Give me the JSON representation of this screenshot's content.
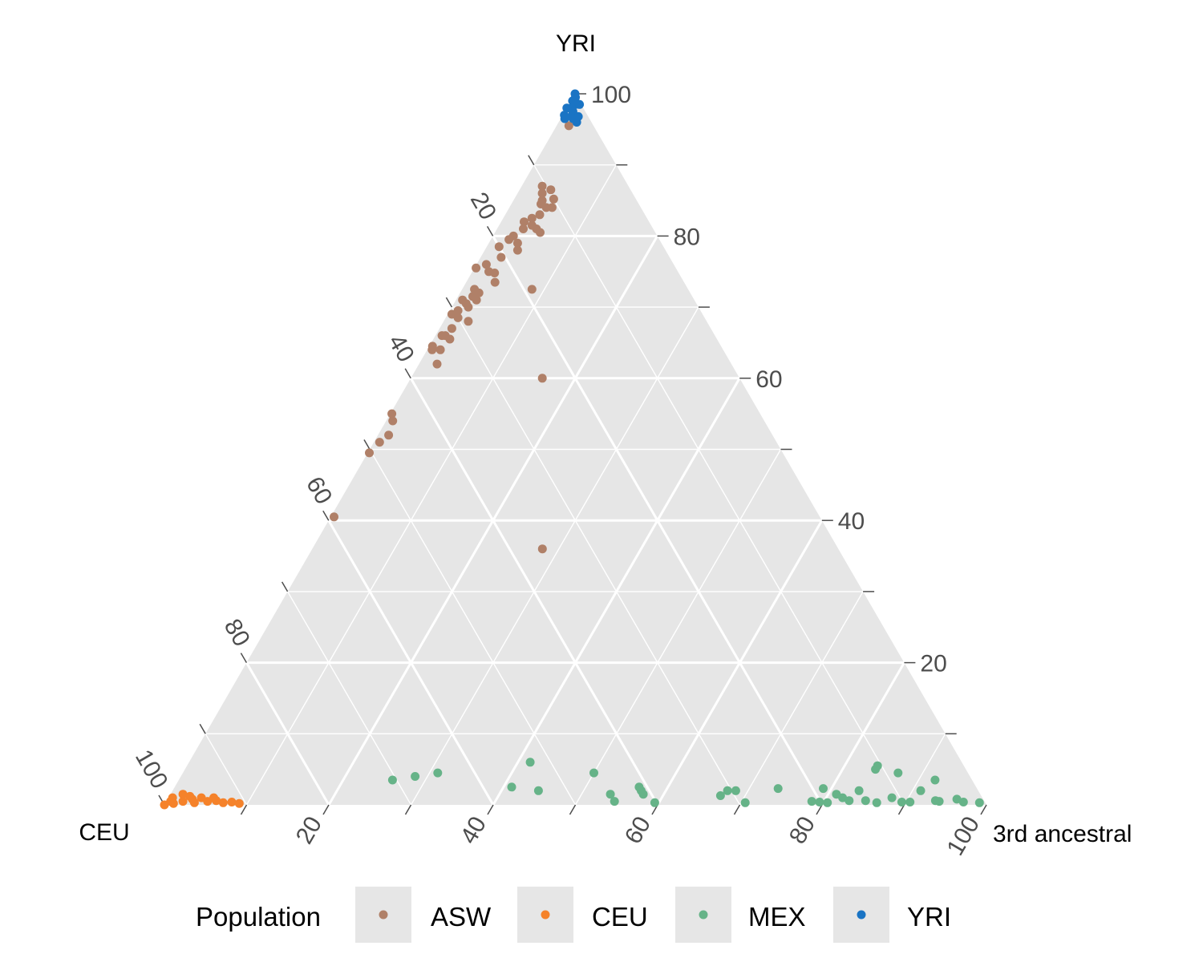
{
  "chart_data": {
    "type": "scatter",
    "subtype": "ternary",
    "title": "",
    "axes": {
      "top": "YRI",
      "left": "CEU",
      "right": "3rd ancestral"
    },
    "ticks": [
      "20",
      "40",
      "60",
      "80",
      "100"
    ],
    "right_edge_ticks": [
      "20",
      "40",
      "60",
      "80",
      "100"
    ],
    "range": [
      0,
      100
    ],
    "grid": true,
    "legend": {
      "title": "Population",
      "position": "bottom",
      "entries": [
        {
          "name": "ASW",
          "color": "#B08068"
        },
        {
          "name": "CEU",
          "color": "#F5822A"
        },
        {
          "name": "MEX",
          "color": "#66B388"
        },
        {
          "name": "YRI",
          "color": "#1A74C4"
        }
      ]
    },
    "point_fields": [
      "YRI",
      "3rd ancestral"
    ],
    "series": [
      {
        "name": "ASW",
        "color": "#B08068",
        "points": [
          [
            95.5,
            1.5
          ],
          [
            87.0,
            2.5
          ],
          [
            86.0,
            3.0
          ],
          [
            86.5,
            3.8
          ],
          [
            85.0,
            3.5
          ],
          [
            84.5,
            3.6
          ],
          [
            84.0,
            4.5
          ],
          [
            85.2,
            4.8
          ],
          [
            84.0,
            5.2
          ],
          [
            83.0,
            4.2
          ],
          [
            82.5,
            3.5
          ],
          [
            82.0,
            2.8
          ],
          [
            81.5,
            4.0
          ],
          [
            81.0,
            3.2
          ],
          [
            81.0,
            4.8
          ],
          [
            80.5,
            5.5
          ],
          [
            80.0,
            2.5
          ],
          [
            79.5,
            2.2
          ],
          [
            79.0,
            3.5
          ],
          [
            78.5,
            1.5
          ],
          [
            78.0,
            4.0
          ],
          [
            77.0,
            2.5
          ],
          [
            75.5,
            0.2
          ],
          [
            76.0,
            1.2
          ],
          [
            75.0,
            2.0
          ],
          [
            74.8,
            2.8
          ],
          [
            73.5,
            3.5
          ],
          [
            72.5,
            1.5
          ],
          [
            72.0,
            2.3
          ],
          [
            71.5,
            1.8
          ],
          [
            71.0,
            0.8
          ],
          [
            71.0,
            2.5
          ],
          [
            70.5,
            1.5
          ],
          [
            70.0,
            2.0
          ],
          [
            69.5,
            1.0
          ],
          [
            69.0,
            0.5
          ],
          [
            68.5,
            1.5
          ],
          [
            68.0,
            3.0
          ],
          [
            67.0,
            1.5
          ],
          [
            66.0,
            0.8
          ],
          [
            66.0,
            1.2
          ],
          [
            65.5,
            2.0
          ],
          [
            72.5,
            8.5
          ],
          [
            64.5,
            0.4
          ],
          [
            64.0,
            0.6
          ],
          [
            64.0,
            1.6
          ],
          [
            62.0,
            2.2
          ],
          [
            55.0,
            0.2
          ],
          [
            54.0,
            0.8
          ],
          [
            52.0,
            1.3
          ],
          [
            51.0,
            0.7
          ],
          [
            49.5,
            0.2
          ],
          [
            40.5,
            0.4
          ],
          [
            60.0,
            16.0
          ],
          [
            36.0,
            28.0
          ]
        ]
      },
      {
        "name": "CEU",
        "color": "#F5822A",
        "points": [
          [
            0,
            0
          ],
          [
            0.5,
            0.5
          ],
          [
            1.0,
            0.5
          ],
          [
            1.5,
            1.5
          ],
          [
            0.5,
            2.0
          ],
          [
            0.8,
            3.0
          ],
          [
            1.0,
            4.0
          ],
          [
            0.5,
            5.0
          ],
          [
            0.6,
            6.0
          ],
          [
            0.3,
            7.0
          ],
          [
            1.2,
            2.5
          ],
          [
            1.0,
            5.5
          ],
          [
            0.4,
            8.0
          ],
          [
            0.2,
            9.0
          ],
          [
            0.3,
            3.5
          ],
          [
            0.2,
            1.0
          ]
        ]
      },
      {
        "name": "MEX",
        "color": "#66B388",
        "points": [
          [
            3.5,
            26.0
          ],
          [
            4.0,
            28.5
          ],
          [
            4.5,
            31.0
          ],
          [
            6.0,
            41.5
          ],
          [
            2.5,
            41.0
          ],
          [
            2.0,
            44.5
          ],
          [
            4.5,
            50.0
          ],
          [
            1.5,
            53.5
          ],
          [
            0.5,
            54.5
          ],
          [
            2.5,
            56.5
          ],
          [
            2.0,
            57.0
          ],
          [
            1.5,
            57.5
          ],
          [
            0.3,
            59.5
          ],
          [
            2.0,
            67.5
          ],
          [
            1.3,
            67.0
          ],
          [
            2.0,
            68.5
          ],
          [
            0.3,
            70.5
          ],
          [
            2.3,
            73.5
          ],
          [
            2.3,
            79.0
          ],
          [
            0.5,
            78.5
          ],
          [
            0.4,
            79.5
          ],
          [
            0.3,
            80.5
          ],
          [
            1.5,
            81.0
          ],
          [
            1.0,
            82.0
          ],
          [
            0.6,
            83.0
          ],
          [
            2.0,
            83.5
          ],
          [
            5.5,
            84.0
          ],
          [
            5.0,
            84.0
          ],
          [
            0.6,
            85.0
          ],
          [
            0.3,
            86.5
          ],
          [
            1.0,
            88.0
          ],
          [
            4.5,
            87.0
          ],
          [
            0.4,
            89.5
          ],
          [
            0.4,
            90.5
          ],
          [
            2.0,
            91.0
          ],
          [
            3.5,
            92.0
          ],
          [
            0.6,
            93.5
          ],
          [
            0.5,
            94.0
          ],
          [
            0.8,
            96.0
          ],
          [
            0.4,
            97.0
          ],
          [
            0.3,
            99.0
          ]
        ]
      },
      {
        "name": "YRI",
        "color": "#1A74C4",
        "points": [
          [
            100,
            0
          ],
          [
            99.5,
            0.3
          ],
          [
            99,
            0.5
          ],
          [
            98.5,
            0.8
          ],
          [
            98,
            0.6
          ],
          [
            97.5,
            1.0
          ],
          [
            97.0,
            1.2
          ],
          [
            97.0,
            0.2
          ],
          [
            98.0,
            0.0
          ],
          [
            96.5,
            1.5
          ],
          [
            96.8,
            2.0
          ],
          [
            98.5,
            1.3
          ],
          [
            99.0,
            0.2
          ],
          [
            96.0,
            2.2
          ],
          [
            96.5,
            0.5
          ]
        ]
      }
    ]
  }
}
